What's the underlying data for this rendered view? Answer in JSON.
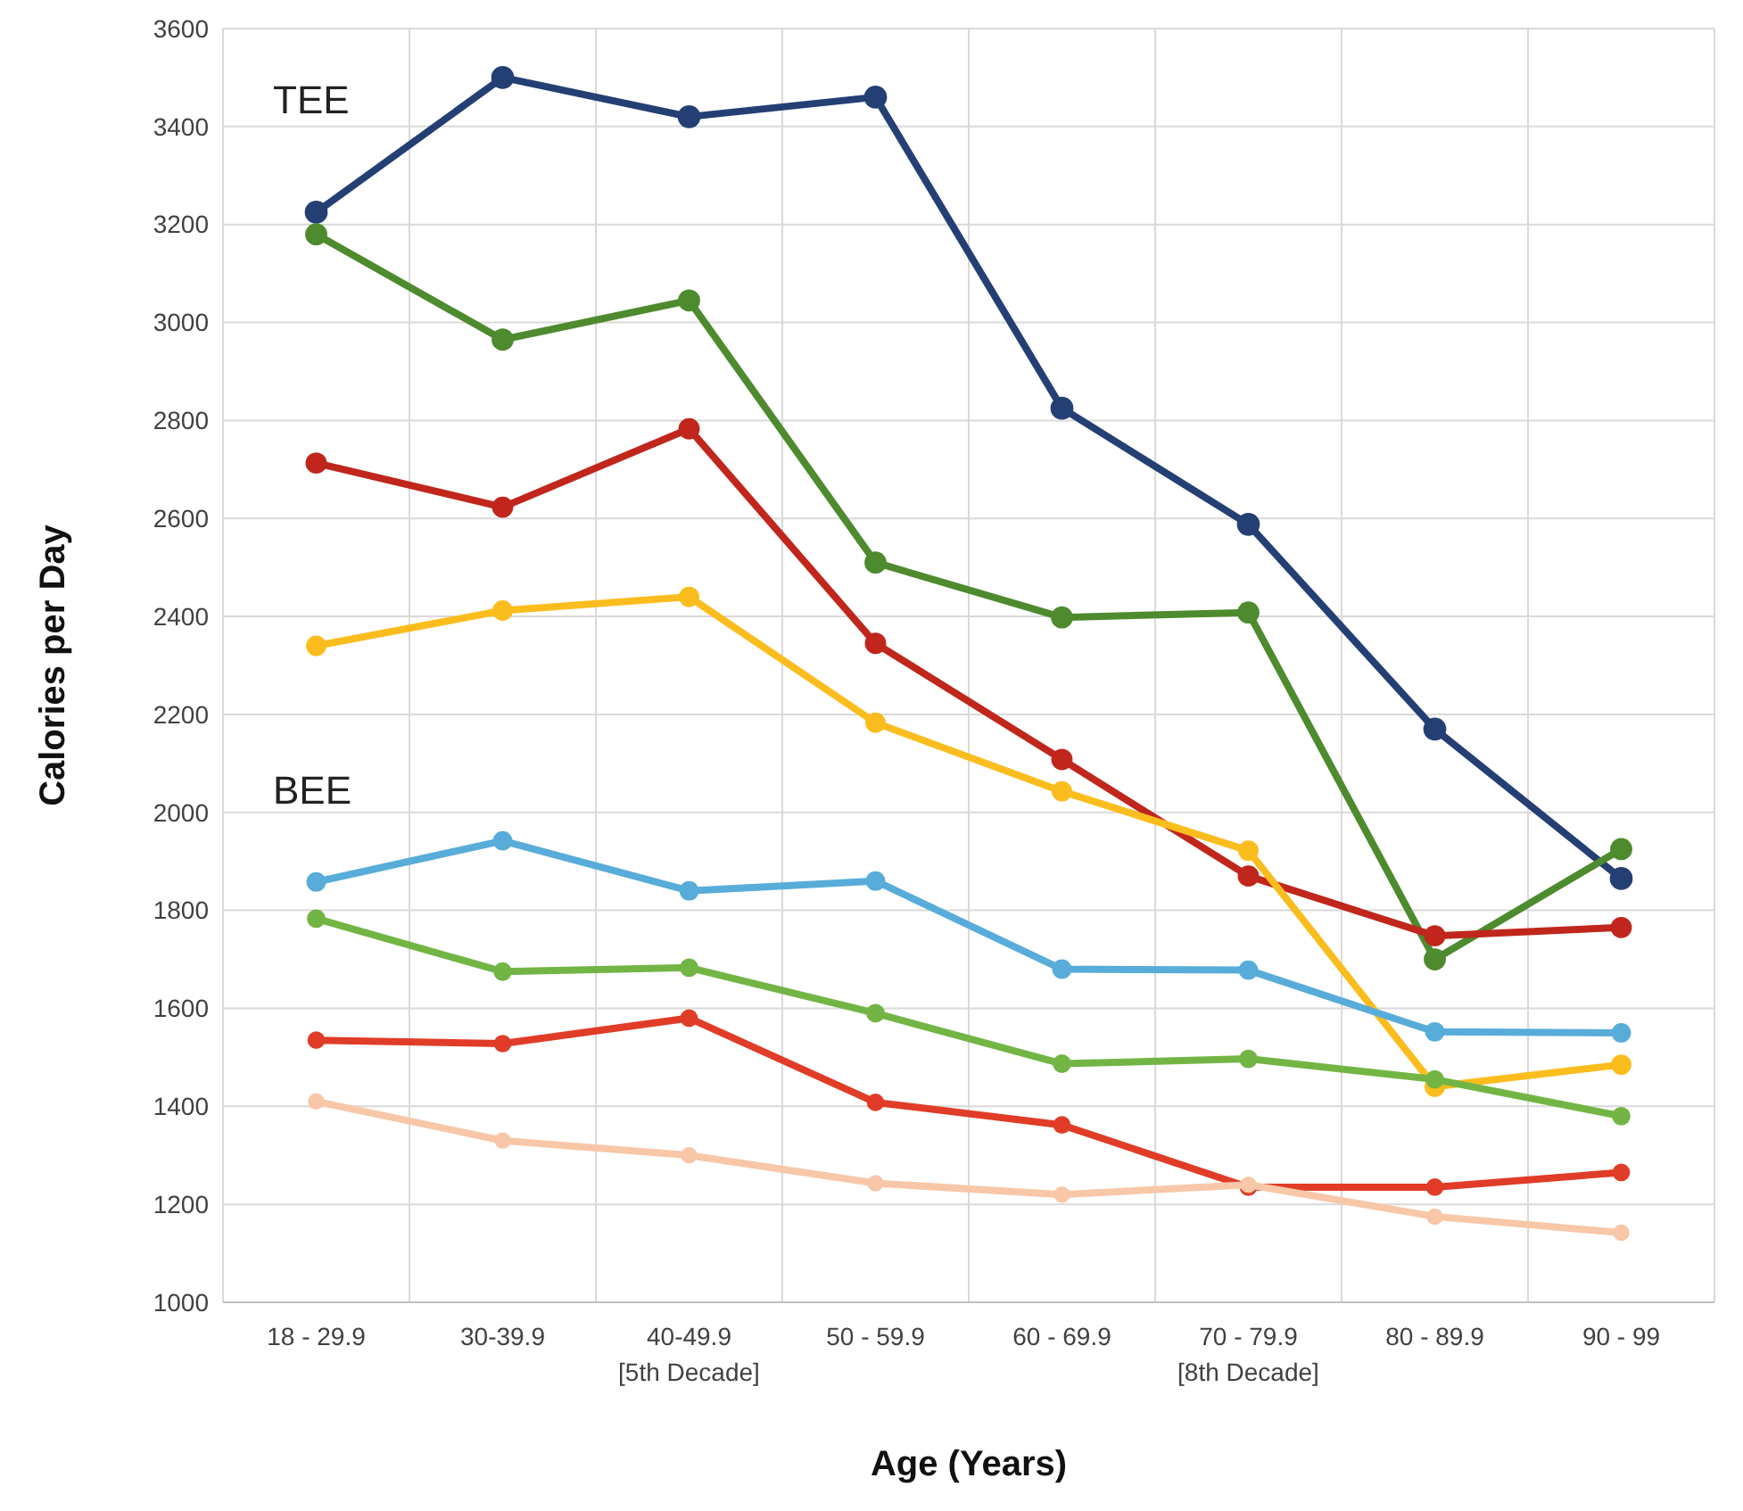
{
  "chart_data": {
    "type": "line",
    "xlabel": "Age (Years)",
    "ylabel": "Calories per Day",
    "categories": [
      "18 - 29.9",
      "30-39.9",
      "40-49.9\n[5th Decade]",
      "50 - 59.9",
      "60 - 69.9",
      "70 - 79.9\n[8th Decade]",
      "80 - 89.9",
      "90 - 99"
    ],
    "ylim": [
      1000,
      3600
    ],
    "yticks": [
      1000,
      1200,
      1400,
      1600,
      1800,
      2000,
      2200,
      2400,
      2600,
      2800,
      3000,
      3200,
      3400,
      3600
    ],
    "grid": true,
    "marker": "circle",
    "annotations": [
      "TEE",
      "BEE"
    ],
    "series": [
      {
        "color": "#243f73",
        "values": [
          3225,
          3500,
          3420,
          3460,
          2825,
          2588,
          2170,
          1865
        ]
      },
      {
        "color": "#4e8a2e",
        "values": [
          3180,
          2965,
          3045,
          2510,
          2398,
          2408,
          1700,
          1925
        ]
      },
      {
        "color": "#c0261c",
        "values": [
          2713,
          2623,
          2783,
          2345,
          2108,
          1870,
          1748,
          1765
        ]
      },
      {
        "color": "#fbbd1e",
        "values": [
          2340,
          2412,
          2440,
          2183,
          2043,
          1922,
          1440,
          1485
        ]
      },
      {
        "color": "#58acd9",
        "values": [
          1858,
          1942,
          1840,
          1860,
          1680,
          1678,
          1552,
          1550
        ]
      },
      {
        "color": "#72b545",
        "values": [
          1783,
          1675,
          1683,
          1590,
          1487,
          1497,
          1455,
          1380
        ]
      },
      {
        "color": "#e03c27",
        "values": [
          1535,
          1528,
          1580,
          1408,
          1362,
          1235,
          1235,
          1265
        ]
      },
      {
        "color": "#f7c7a8",
        "values": [
          1410,
          1330,
          1300,
          1243,
          1220,
          1240,
          1175,
          1142
        ]
      }
    ]
  }
}
